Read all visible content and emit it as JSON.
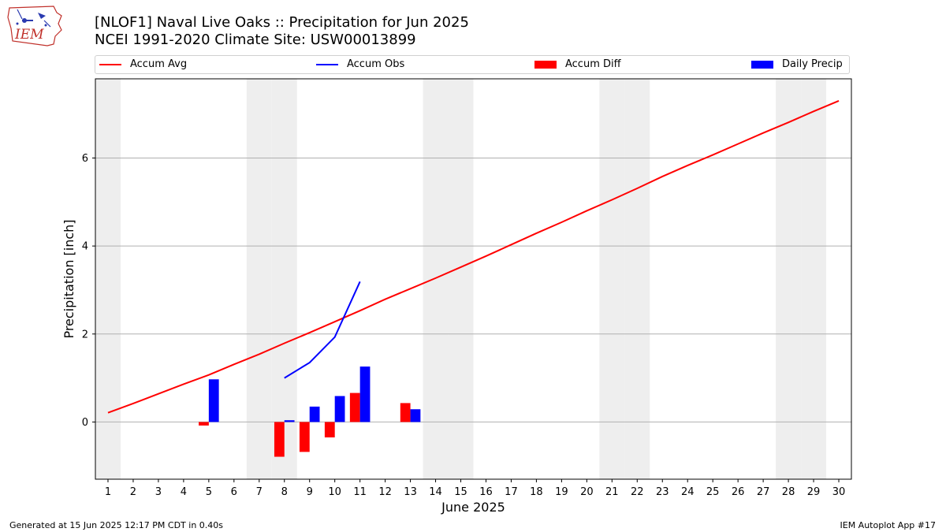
{
  "header": {
    "title_line1": "[NLOF1] Naval Live Oaks :: Precipitation for Jun 2025",
    "title_line2": "NCEI 1991-2020 Climate Site: USW00013899",
    "logo_text": "IEM"
  },
  "footer": {
    "left": "Generated at 15 Jun 2025 12:17 PM CDT in 0.40s",
    "right": "IEM Autoplot App #17"
  },
  "colors": {
    "avg": "#ff0000",
    "obs": "#0000ff",
    "diff": "#ff0000",
    "daily": "#0000ff",
    "weekend_shade": "#eeeeee",
    "grid": "#b0b0b0"
  },
  "chart_data": {
    "type": "bar",
    "xlabel": "June 2025",
    "ylabel": "Precipitation [inch]",
    "xlim": [
      0.5,
      30.5
    ],
    "ylim": [
      -1.3,
      7.8
    ],
    "yticks": [
      0,
      2,
      4,
      6
    ],
    "x_ticks": [
      1,
      2,
      3,
      4,
      5,
      6,
      7,
      8,
      9,
      10,
      11,
      12,
      13,
      14,
      15,
      16,
      17,
      18,
      19,
      20,
      21,
      22,
      23,
      24,
      25,
      26,
      27,
      28,
      29,
      30
    ],
    "grid": "horizontal",
    "legend_position": "top",
    "legend": [
      "Accum Avg",
      "Accum Obs",
      "Accum Diff",
      "Daily Precip"
    ],
    "weekend_days": [
      1,
      7,
      8,
      14,
      15,
      21,
      22,
      28,
      29
    ],
    "series": [
      {
        "name": "Accum Avg",
        "kind": "line",
        "x": [
          1,
          2,
          3,
          4,
          5,
          6,
          7,
          8,
          9,
          10,
          11,
          12,
          13,
          14,
          15,
          16,
          17,
          18,
          19,
          20,
          21,
          22,
          23,
          24,
          25,
          26,
          27,
          28,
          29,
          30
        ],
        "values": [
          0.21,
          0.42,
          0.64,
          0.86,
          1.07,
          1.31,
          1.54,
          1.79,
          2.03,
          2.28,
          2.53,
          2.79,
          3.03,
          3.27,
          3.52,
          3.77,
          4.03,
          4.29,
          4.54,
          4.8,
          5.05,
          5.31,
          5.58,
          5.83,
          6.07,
          6.32,
          6.57,
          6.81,
          7.06,
          7.3
        ]
      },
      {
        "name": "Accum Obs",
        "kind": "line",
        "x": [
          8,
          9,
          10,
          11
        ],
        "values": [
          1.0,
          1.35,
          1.93,
          3.19
        ]
      },
      {
        "name": "Accum Diff",
        "kind": "bar",
        "x": [
          5,
          8,
          9,
          10,
          11,
          13
        ],
        "values": [
          -0.08,
          -0.79,
          -0.68,
          -0.35,
          0.66,
          0.43
        ]
      },
      {
        "name": "Daily Precip",
        "kind": "bar",
        "x": [
          5,
          8,
          9,
          10,
          11,
          13
        ],
        "values": [
          0.97,
          0.04,
          0.35,
          0.59,
          1.26,
          0.29
        ]
      }
    ]
  }
}
